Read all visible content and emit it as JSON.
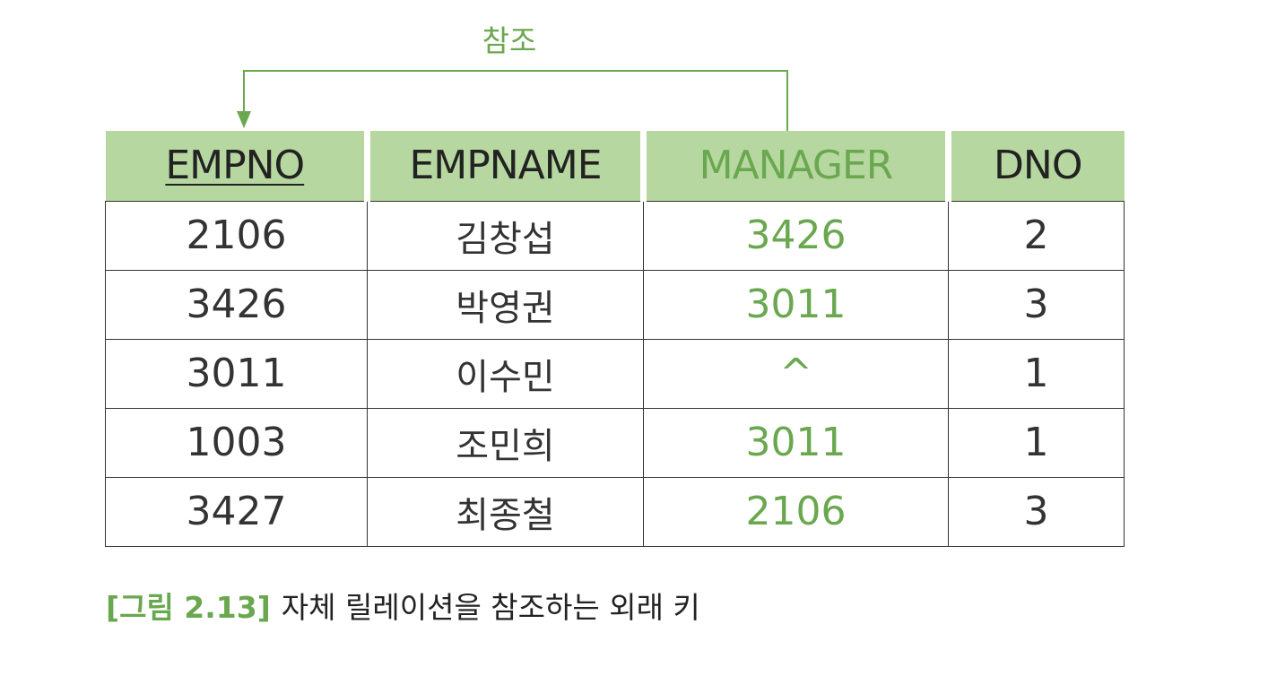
{
  "reference_label": "참조",
  "table": {
    "columns": [
      {
        "name": "EMPNO",
        "primary_key": true,
        "foreign_key": false
      },
      {
        "name": "EMPNAME",
        "primary_key": false,
        "foreign_key": false
      },
      {
        "name": "MANAGER",
        "primary_key": false,
        "foreign_key": true
      },
      {
        "name": "DNO",
        "primary_key": false,
        "foreign_key": false
      }
    ],
    "rows": [
      [
        "2106",
        "김창섭",
        "3426",
        "2"
      ],
      [
        "3426",
        "박영권",
        "3011",
        "3"
      ],
      [
        "3011",
        "이수민",
        "^",
        "1"
      ],
      [
        "1003",
        "조민희",
        "3011",
        "1"
      ],
      [
        "3427",
        "최종철",
        "2106",
        "3"
      ]
    ]
  },
  "caption": {
    "figure_number": "[그림 2.13]",
    "text": "자체 릴레이션을 참조하는 외래 키"
  },
  "colors": {
    "accent": "#6aa84f",
    "header_background": "#b7d7a1",
    "text": "#333333"
  }
}
